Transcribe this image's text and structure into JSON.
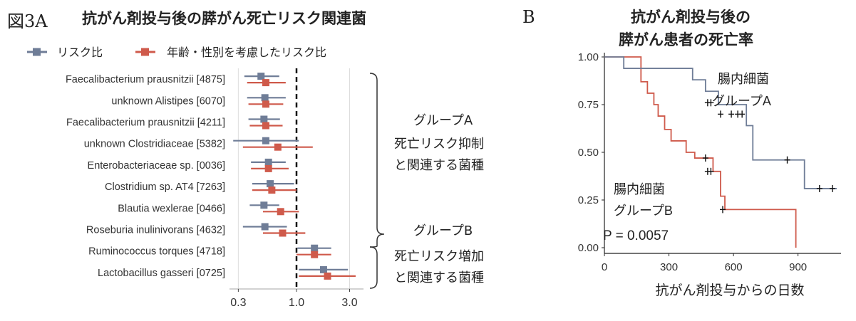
{
  "figure": {
    "panel_a_label": "図3A",
    "panel_b_label": "B"
  },
  "colors": {
    "group_a": "#6f7d97",
    "group_b": "#cf5a4b",
    "grid": "#dddddd",
    "axis": "#222222"
  },
  "chart_data": [
    {
      "type": "forest",
      "title": "抗がん剤投与後の膵がん死亡リスク関連菌",
      "xscale": "log",
      "xlim": [
        0.25,
        4.0
      ],
      "xticks": [
        0.3,
        1.0,
        3.0
      ],
      "xtick_labels": [
        "0.3",
        "1.0",
        "3.0"
      ],
      "reference_line": 1.0,
      "legend": {
        "position": "top",
        "entries": [
          "リスク比",
          "年齢・性別を考慮したリスク比"
        ]
      },
      "labels": [
        "Faecalibacterium prausnitzii [4875]",
        "unknown Alistipes [6070]",
        "Faecalibacterium prausnitzii [4211]",
        "unknown Clostridiaceae [5382]",
        "Enterobacteriaceae sp. [0036]",
        "Clostridium sp. AT4 [7263]",
        "Blautia wexlerae [0466]",
        "Roseburia inulinivorans [4632]",
        "Ruminococcus torques [4718]",
        "Lactobacillus gasseri [0725]"
      ],
      "series": [
        {
          "name": "リスク比",
          "estimates": [
            0.48,
            0.52,
            0.51,
            0.53,
            0.56,
            0.58,
            0.51,
            0.52,
            1.45,
            1.75
          ],
          "lower": [
            0.34,
            0.36,
            0.37,
            0.27,
            0.39,
            0.4,
            0.38,
            0.33,
            1.02,
            1.05
          ],
          "upper": [
            0.7,
            0.8,
            0.71,
            1.05,
            0.8,
            0.95,
            0.7,
            0.82,
            2.05,
            2.9
          ]
        },
        {
          "name": "年齢・性別を考慮したリスク比",
          "estimates": [
            0.53,
            0.53,
            0.53,
            0.68,
            0.56,
            0.6,
            0.72,
            0.75,
            1.45,
            1.9
          ],
          "lower": [
            0.36,
            0.37,
            0.38,
            0.33,
            0.39,
            0.4,
            0.5,
            0.5,
            1.0,
            1.05
          ],
          "upper": [
            0.8,
            0.76,
            0.75,
            1.4,
            0.85,
            1.0,
            1.05,
            1.2,
            2.05,
            3.4
          ]
        }
      ],
      "groups": [
        {
          "name": "グループA",
          "description": [
            "死亡リスク抑制",
            "と関連する菌種"
          ],
          "rows": [
            0,
            7
          ]
        },
        {
          "name": "グループB",
          "description": [
            "死亡リスク増加",
            "と関連する菌種"
          ],
          "rows": [
            8,
            9
          ]
        }
      ]
    },
    {
      "type": "line",
      "subtype": "kaplan-meier",
      "title": [
        "抗がん剤投与後の",
        "膵がん患者の死亡率"
      ],
      "xlabel": "抗がん剤投与からの日数",
      "ylabel": "",
      "xlim": [
        0,
        1100
      ],
      "ylim": [
        0,
        1.0
      ],
      "xticks": [
        0,
        300,
        600,
        900
      ],
      "yticks": [
        0.0,
        0.25,
        0.5,
        0.75,
        1.0
      ],
      "ytick_labels": [
        "0.00",
        "0.25",
        "0.50",
        "0.75",
        "1.00"
      ],
      "grid": false,
      "annotation": "P = 0.0057",
      "series": [
        {
          "name": "腸内細菌 グループA",
          "label_lines": [
            "腸内細菌",
            "グループA"
          ],
          "steps": [
            [
              0,
              1.0
            ],
            [
              90,
              0.94
            ],
            [
              410,
              0.88
            ],
            [
              470,
              0.82
            ],
            [
              530,
              0.75
            ],
            [
              660,
              0.64
            ],
            [
              690,
              0.46
            ],
            [
              930,
              0.31
            ],
            [
              1080,
              0.31
            ]
          ],
          "censored": [
            [
              480,
              0.76
            ],
            [
              495,
              0.76
            ],
            [
              540,
              0.7
            ],
            [
              590,
              0.7
            ],
            [
              620,
              0.7
            ],
            [
              640,
              0.7
            ],
            [
              850,
              0.46
            ],
            [
              1000,
              0.31
            ],
            [
              1060,
              0.31
            ]
          ]
        },
        {
          "name": "腸内細菌 グループB",
          "label_lines": [
            "腸内細菌",
            "グループB"
          ],
          "steps": [
            [
              0,
              1.0
            ],
            [
              170,
              0.87
            ],
            [
              200,
              0.81
            ],
            [
              230,
              0.75
            ],
            [
              250,
              0.69
            ],
            [
              280,
              0.62
            ],
            [
              310,
              0.56
            ],
            [
              380,
              0.5
            ],
            [
              420,
              0.47
            ],
            [
              505,
              0.4
            ],
            [
              540,
              0.27
            ],
            [
              560,
              0.2
            ],
            [
              890,
              0.0
            ]
          ],
          "censored": [
            [
              470,
              0.47
            ],
            [
              480,
              0.4
            ],
            [
              495,
              0.4
            ],
            [
              550,
              0.2
            ]
          ]
        }
      ]
    }
  ]
}
